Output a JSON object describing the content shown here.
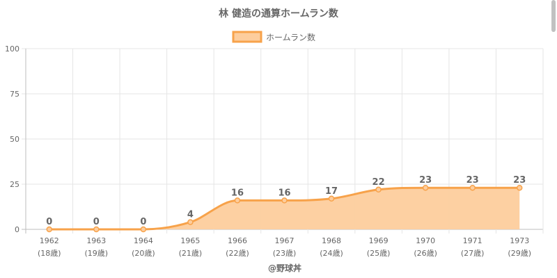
{
  "chart_data": {
    "type": "area",
    "title": "林 健造の通算ホームラン数",
    "legend": {
      "label": "ホームラン数",
      "position": "top"
    },
    "categories": [
      [
        "1962",
        "(18歳)"
      ],
      [
        "1963",
        "(19歳)"
      ],
      [
        "1964",
        "(20歳)"
      ],
      [
        "1965",
        "(21歳)"
      ],
      [
        "1966",
        "(22歳)"
      ],
      [
        "1967",
        "(23歳)"
      ],
      [
        "1968",
        "(24歳)"
      ],
      [
        "1969",
        "(25歳)"
      ],
      [
        "1970",
        "(26歳)"
      ],
      [
        "1971",
        "(27歳)"
      ],
      [
        "1973",
        "(29歳)"
      ]
    ],
    "series": [
      {
        "name": "ホームラン数",
        "values": [
          0,
          0,
          0,
          4,
          16,
          16,
          17,
          22,
          23,
          23,
          23
        ]
      }
    ],
    "ylim": [
      0,
      100
    ],
    "yticks": [
      0,
      25,
      50,
      75,
      100
    ],
    "grid": true,
    "colors": {
      "line": "#f7a24a",
      "fill": "#fdcd9d",
      "grid": "#e5e5e5",
      "axis": "#bdbdbd",
      "text": "#666666"
    }
  },
  "credit": "@野球丼"
}
